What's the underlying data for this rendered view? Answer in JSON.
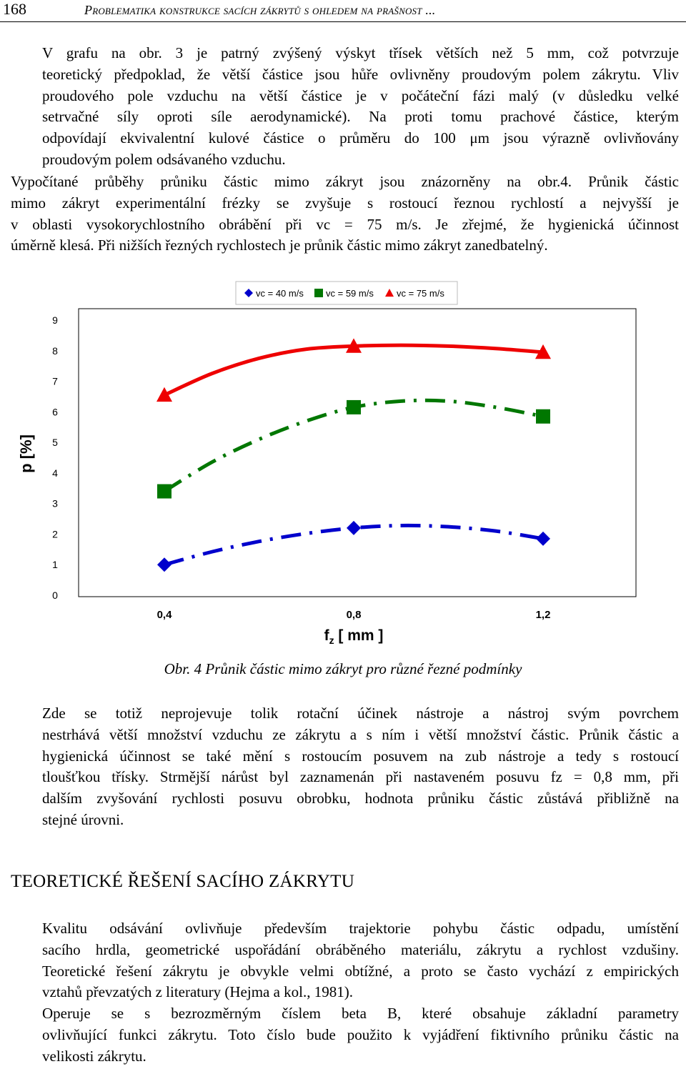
{
  "header": {
    "page_number": "168",
    "running_title": "Problematika konstrukce sacích zákrytů s ohledem na prašnost ..."
  },
  "paragraphs": {
    "p1": [
      "V grafu na obr. 3 je patrný zvýšený výskyt třísek větších než 5 mm, což potvrzuje",
      "teoretický předpoklad, že větší částice jsou hůře ovlivněny proudovým polem zákrytu. Vliv",
      "proudového pole vzduchu na větší částice je v počáteční fázi malý (v důsledku velké",
      "setrvačné síly oproti síle aerodynamické). Na proti tomu prachové částice, kterým",
      "odpovídají ekvivalentní kulové částice o průměru do 100 μm jsou výrazně ovlivňovány",
      "proudovým polem odsávaného vzduchu."
    ],
    "p2": [
      "Vypočítané průběhy průniku částic mimo zákryt jsou znázorněny na obr.4. Průnik částic",
      "mimo zákryt experimentální frézky se zvyšuje s rostoucí řeznou rychlostí a nejvyšší je",
      "v oblasti vysokorychlostního obrábění při vc = 75 m/s. Je zřejmé, že hygienická účinnost",
      "úměrně klesá. Při nižších řezných rychlostech je průnik částic mimo zákryt zanedbatelný."
    ],
    "p3": [
      "Zde se totiž neprojevuje tolik rotační účinek nástroje a nástroj svým povrchem",
      "nestrhává větší množství vzduchu ze zákrytu a s ním i větší množství částic. Průnik částic a",
      "hygienická účinnost se také mění s rostoucím posuvem na zub nástroje a tedy s rostoucí",
      "tloušťkou třísky. Strmější nárůst byl zaznamenán při nastaveném posuvu fz = 0,8 mm, při",
      "dalším zvyšování rychlosti posuvu obrobku, hodnota průniku částic zůstává přibližně na",
      "stejné úrovni."
    ],
    "p4": [
      "Kvalitu odsávání ovlivňuje především trajektorie pohybu částic odpadu, umístění",
      "sacího hrdla, geometrické uspořádání obráběného materiálu, zákrytu a rychlost vzdušiny.",
      "Teoretické řešení zákrytu je obvykle velmi obtížné, a proto se často vychází z empirických",
      "vztahů převzatých z literatury (Hejma a kol., 1981)."
    ],
    "p5": [
      "Operuje se s bezrozměrným číslem beta B, které obsahuje základní parametry",
      "ovlivňující funkci zákrytu. Toto číslo bude použito k vyjádření fiktivního průniku částic na",
      "velikosti zákrytu."
    ]
  },
  "heading": "TEORETICKÉ ŘEŠENÍ SACÍHO ZÁKRYTU",
  "caption": "Obr. 4 Průnik částic mimo zákryt pro různé řezné podmínky",
  "chart_data": {
    "type": "line",
    "title": "",
    "xlabel": "f z [ mm ]",
    "ylabel": "p [%]",
    "x_ticks": [
      "0,4",
      "0,8",
      "1,2"
    ],
    "y_ticks": [
      "0",
      "1",
      "2",
      "3",
      "4",
      "5",
      "6",
      "7",
      "8",
      "9"
    ],
    "ylim": [
      0,
      9
    ],
    "xlim": [
      0.4,
      1.2
    ],
    "legend_position": "top",
    "series": [
      {
        "name": "vc = 40 m/s",
        "marker": "diamond",
        "color": "#0000cc",
        "line": "dashed",
        "x": [
          0.4,
          0.8,
          1.2
        ],
        "y": [
          1.0,
          2.2,
          1.85
        ],
        "curve_x": [
          0.4,
          0.5,
          0.6,
          0.7,
          0.8,
          0.9,
          1.0,
          1.1,
          1.2
        ],
        "curve_y": [
          1.0,
          1.42,
          1.76,
          2.02,
          2.2,
          2.28,
          2.24,
          2.1,
          1.85
        ]
      },
      {
        "name": "vc = 59 m/s",
        "marker": "square",
        "color": "#007700",
        "line": "dashed",
        "x": [
          0.4,
          0.8,
          1.2
        ],
        "y": [
          3.4,
          6.15,
          5.85
        ],
        "curve_x": [
          0.4,
          0.5,
          0.6,
          0.7,
          0.8,
          0.9,
          1.0,
          1.1,
          1.2
        ],
        "curve_y": [
          3.4,
          4.35,
          5.1,
          5.7,
          6.15,
          6.35,
          6.35,
          6.15,
          5.85
        ]
      },
      {
        "name": "vc = 75 m/s",
        "marker": "triangle",
        "color": "#ee0000",
        "line": "solid",
        "x": [
          0.4,
          0.8,
          1.2
        ],
        "y": [
          6.55,
          8.15,
          7.95
        ],
        "curve_x": [
          0.4,
          0.5,
          0.6,
          0.7,
          0.8,
          0.9,
          1.0,
          1.1,
          1.2
        ],
        "curve_y": [
          6.55,
          7.25,
          7.75,
          8.05,
          8.15,
          8.18,
          8.15,
          8.07,
          7.95
        ]
      }
    ]
  }
}
